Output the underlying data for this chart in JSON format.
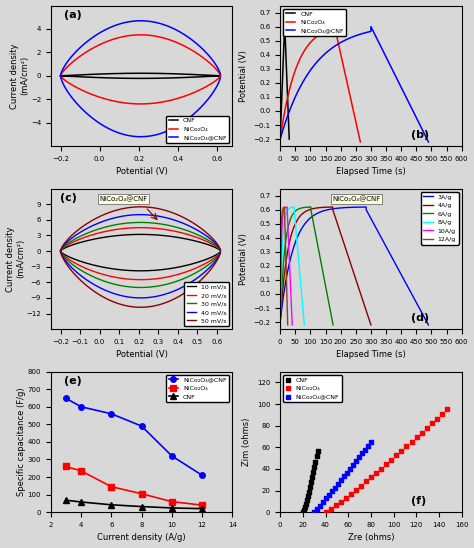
{
  "fig_width": 4.74,
  "fig_height": 5.48,
  "dpi": 100,
  "bg_color": "#d8d8d8",
  "panel_a": {
    "label": "(a)",
    "xlabel": "Potential (V)",
    "ylabel": "Current density\n(mA/cm²)",
    "xlim": [
      -0.25,
      0.68
    ],
    "ylim": [
      -6,
      6
    ],
    "xticks": [
      -0.2,
      0.0,
      0.2,
      0.4,
      0.6
    ],
    "yticks": [
      -4,
      -2,
      0,
      2,
      4
    ],
    "legend": [
      "CNF",
      "NiCo₂O₄",
      "NiCo₂O₄@CNF"
    ],
    "colors": [
      "black",
      "red",
      "blue"
    ]
  },
  "panel_b": {
    "label": "(b)",
    "xlabel": "Elapsed Time (s)",
    "ylabel": "Potential (V)",
    "xlim": [
      0,
      600
    ],
    "ylim": [
      -0.25,
      0.75
    ],
    "xticks": [
      0,
      50,
      100,
      150,
      200,
      250,
      300,
      350,
      400,
      450,
      500,
      550,
      600
    ],
    "yticks": [
      -0.2,
      -0.1,
      0.0,
      0.1,
      0.2,
      0.3,
      0.4,
      0.5,
      0.6,
      0.7
    ],
    "legend": [
      "CNF",
      "NiCo₂O₄",
      "NiCo₂O₄@CNF"
    ],
    "colors": [
      "black",
      "red",
      "blue"
    ]
  },
  "panel_c": {
    "label": "(c)",
    "xlabel": "Potential (V)",
    "ylabel": "Current density\n(mA/cm²)",
    "xlim": [
      -0.25,
      0.68
    ],
    "ylim": [
      -15,
      12
    ],
    "xticks": [
      -0.2,
      -0.1,
      0.0,
      0.1,
      0.2,
      0.3,
      0.4,
      0.5,
      0.6
    ],
    "yticks": [
      -12,
      -9,
      -6,
      -3,
      0,
      3,
      6,
      9
    ],
    "legend": [
      "10 mV/s",
      "20 mV/s",
      "30 mV/s",
      "40 mV/s",
      "50 mV/s"
    ],
    "colors": [
      "black",
      "red",
      "green",
      "blue",
      "darkred"
    ],
    "annotation": "NiCo₂O₄@CNF"
  },
  "panel_d": {
    "label": "(d)",
    "xlabel": "Elapsed Time (s)",
    "ylabel": "Potential (V)",
    "xlim": [
      0,
      600
    ],
    "ylim": [
      -0.25,
      0.75
    ],
    "xticks": [
      0,
      50,
      100,
      150,
      200,
      250,
      300,
      350,
      400,
      450,
      500,
      550,
      600
    ],
    "yticks": [
      -0.2,
      -0.1,
      0.0,
      0.1,
      0.2,
      0.3,
      0.4,
      0.5,
      0.6,
      0.7
    ],
    "legend": [
      "3A/g",
      "4A/g",
      "6A/g",
      "8A/g",
      "10A/g",
      "12A/g"
    ],
    "colors": [
      "blue",
      "darkred",
      "green",
      "cyan",
      "magenta",
      "saddlebrown"
    ],
    "annotation": "NiCo₂O₄@CNF"
  },
  "panel_e": {
    "label": "(e)",
    "xlabel": "Current density (A/g)",
    "ylabel": "Specific capacitance (F/g)",
    "xlim": [
      2,
      14
    ],
    "ylim": [
      0,
      800
    ],
    "xticks": [
      2,
      4,
      6,
      8,
      10,
      12,
      14
    ],
    "yticks": [
      0,
      100,
      200,
      300,
      400,
      500,
      600,
      700,
      800
    ],
    "legend": [
      "NiCo₂O₄@CNF",
      "NiCo₂O₄",
      "CNF"
    ],
    "colors": [
      "blue",
      "red",
      "black"
    ],
    "data": {
      "NiCo2O4@CNF_x": [
        3,
        4,
        6,
        8,
        10,
        12
      ],
      "NiCo2O4@CNF_y": [
        648,
        600,
        560,
        490,
        320,
        210
      ],
      "NiCo2O4_x": [
        3,
        4,
        6,
        8,
        10,
        12
      ],
      "NiCo2O4_y": [
        260,
        235,
        145,
        105,
        60,
        40
      ],
      "CNF_x": [
        3,
        4,
        6,
        8,
        10,
        12
      ],
      "CNF_y": [
        68,
        58,
        42,
        32,
        24,
        20
      ]
    }
  },
  "panel_f": {
    "label": "(f)",
    "xlabel": "Zre (ohms)",
    "ylabel": "Zim (ohms)",
    "xlim": [
      0,
      160
    ],
    "ylim": [
      0,
      130
    ],
    "xticks": [
      0,
      20,
      40,
      60,
      80,
      100,
      120,
      140,
      160
    ],
    "yticks": [
      0,
      20,
      40,
      60,
      80,
      100,
      120
    ],
    "legend": [
      "CNF",
      "NiCo₂O₄",
      "NiCo₂O₄@CNF"
    ],
    "colors": [
      "black",
      "red",
      "blue"
    ],
    "markers": [
      "s",
      "s",
      "s"
    ]
  }
}
